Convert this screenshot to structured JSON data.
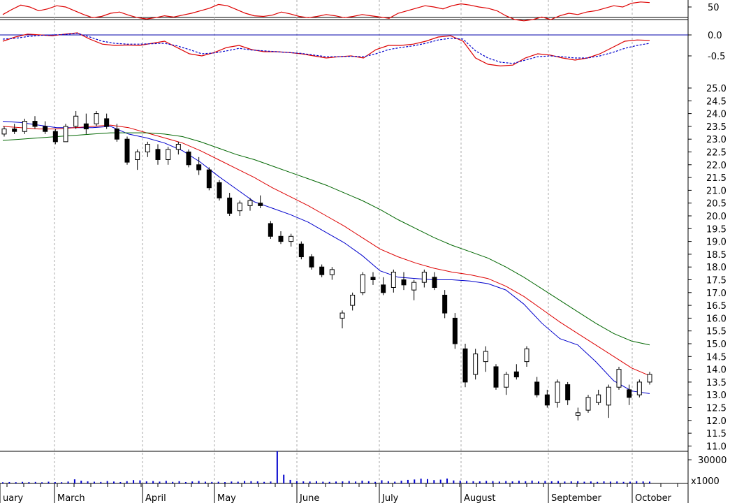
{
  "chart_data": {
    "type": "candlestick",
    "panels": [
      {
        "name": "oscillator",
        "yticks": [
          "50"
        ],
        "reference_level": 30,
        "series": [
          {
            "color": "#dd0000",
            "style": "solid",
            "values": [
              38,
              46,
              53,
              50,
              44,
              47,
              52,
              50,
              44,
              38,
              33,
              35,
              40,
              42,
              37,
              33,
              31,
              33,
              36,
              34,
              37,
              40,
              44,
              48,
              54,
              52,
              46,
              40,
              36,
              35,
              37,
              42,
              39,
              35,
              33,
              35,
              38,
              36,
              33,
              35,
              38,
              36,
              34,
              32,
              40,
              44,
              48,
              52,
              50,
              47,
              52,
              55,
              53,
              50,
              48,
              44,
              36,
              30,
              28,
              30,
              34,
              30,
              36,
              40,
              38,
              42,
              44,
              48,
              52,
              50,
              56,
              58,
              57
            ]
          }
        ]
      },
      {
        "name": "macd",
        "yticks": [
          "0.0",
          "-0.5"
        ],
        "zero_line": 0.0,
        "series": [
          {
            "color": "#dd0000",
            "style": "solid",
            "values": [
              -0.15,
              -0.05,
              0.02,
              0.0,
              -0.02,
              0.02,
              0.05,
              -0.1,
              -0.22,
              -0.25,
              -0.24,
              -0.25,
              -0.2,
              -0.15,
              -0.3,
              -0.45,
              -0.5,
              -0.42,
              -0.3,
              -0.25,
              -0.35,
              -0.4,
              -0.4,
              -0.42,
              -0.45,
              -0.5,
              -0.55,
              -0.52,
              -0.5,
              -0.55,
              -0.35,
              -0.25,
              -0.25,
              -0.22,
              -0.15,
              -0.05,
              -0.02,
              -0.15,
              -0.55,
              -0.7,
              -0.74,
              -0.72,
              -0.55,
              -0.45,
              -0.48,
              -0.55,
              -0.6,
              -0.55,
              -0.45,
              -0.3,
              -0.15,
              -0.12,
              -0.13
            ]
          },
          {
            "color": "#0000cc",
            "style": "dashed",
            "values": [
              -0.1,
              -0.08,
              -0.04,
              -0.01,
              0.0,
              0.01,
              0.04,
              -0.05,
              -0.15,
              -0.2,
              -0.22,
              -0.22,
              -0.21,
              -0.2,
              -0.26,
              -0.35,
              -0.45,
              -0.43,
              -0.38,
              -0.32,
              -0.36,
              -0.38,
              -0.4,
              -0.42,
              -0.44,
              -0.48,
              -0.52,
              -0.52,
              -0.51,
              -0.52,
              -0.45,
              -0.35,
              -0.3,
              -0.26,
              -0.2,
              -0.12,
              -0.08,
              -0.1,
              -0.38,
              -0.55,
              -0.65,
              -0.68,
              -0.6,
              -0.52,
              -0.5,
              -0.52,
              -0.55,
              -0.55,
              -0.5,
              -0.42,
              -0.32,
              -0.25,
              -0.2
            ]
          }
        ]
      },
      {
        "name": "price",
        "yticks": [
          "25.0",
          "24.5",
          "24.0",
          "23.5",
          "23.0",
          "22.5",
          "22.0",
          "21.5",
          "21.0",
          "20.5",
          "20.0",
          "19.5",
          "19.0",
          "18.5",
          "18.0",
          "17.5",
          "17.0",
          "16.5",
          "16.0",
          "15.5",
          "15.0",
          "14.5",
          "14.0",
          "13.5",
          "13.0",
          "12.5",
          "12.0",
          "11.5",
          "11.0"
        ],
        "moving_averages": [
          {
            "color": "#0000cc",
            "values": [
              23.7,
              23.65,
              23.55,
              23.45,
              23.45,
              23.45,
              23.5,
              23.2,
              23.05,
              22.85,
              22.55,
              22.1,
              21.55,
              21.05,
              20.55,
              20.3,
              20.05,
              19.75,
              19.35,
              18.95,
              18.45,
              17.85,
              17.6,
              17.55,
              17.5,
              17.5,
              17.45,
              17.35,
              17.1,
              16.55,
              15.8,
              15.2,
              14.95,
              14.3,
              13.55,
              13.15,
              13.05
            ]
          },
          {
            "color": "#dd0000",
            "values": [
              23.5,
              23.45,
              23.4,
              23.4,
              23.45,
              23.5,
              23.55,
              23.45,
              23.25,
              23.05,
              22.85,
              22.55,
              22.2,
              21.85,
              21.5,
              21.1,
              20.75,
              20.4,
              20.0,
              19.6,
              19.15,
              18.7,
              18.4,
              18.15,
              17.95,
              17.8,
              17.7,
              17.55,
              17.25,
              16.85,
              16.35,
              15.85,
              15.4,
              14.95,
              14.5,
              14.05,
              13.75
            ]
          },
          {
            "color": "#006600",
            "values": [
              22.95,
              23.0,
              23.05,
              23.1,
              23.15,
              23.2,
              23.25,
              23.25,
              23.25,
              23.2,
              23.1,
              22.9,
              22.65,
              22.4,
              22.2,
              21.95,
              21.7,
              21.45,
              21.2,
              20.9,
              20.6,
              20.25,
              19.85,
              19.5,
              19.15,
              18.85,
              18.6,
              18.35,
              18.0,
              17.6,
              17.15,
              16.7,
              16.25,
              15.8,
              15.4,
              15.1,
              14.95
            ]
          }
        ],
        "candles": [
          [
            23.2,
            23.5,
            23.1,
            23.4
          ],
          [
            23.4,
            23.6,
            23.2,
            23.3
          ],
          [
            23.3,
            23.8,
            23.2,
            23.7
          ],
          [
            23.7,
            23.9,
            23.4,
            23.5
          ],
          [
            23.5,
            23.7,
            23.2,
            23.3
          ],
          [
            23.3,
            23.4,
            22.8,
            22.9
          ],
          [
            22.9,
            23.6,
            22.9,
            23.5
          ],
          [
            23.5,
            24.1,
            23.4,
            23.9
          ],
          [
            23.6,
            24.0,
            23.2,
            23.4
          ],
          [
            23.6,
            24.1,
            23.5,
            24.0
          ],
          [
            23.8,
            24.0,
            23.4,
            23.5
          ],
          [
            23.4,
            23.6,
            22.9,
            23.0
          ],
          [
            23.0,
            23.1,
            22.0,
            22.1
          ],
          [
            22.2,
            22.6,
            21.8,
            22.5
          ],
          [
            22.5,
            22.9,
            22.3,
            22.8
          ],
          [
            22.6,
            22.8,
            22.0,
            22.2
          ],
          [
            22.2,
            22.7,
            22.0,
            22.6
          ],
          [
            22.6,
            22.9,
            22.4,
            22.8
          ],
          [
            22.5,
            22.6,
            21.9,
            22.0
          ],
          [
            22.0,
            22.3,
            21.6,
            21.8
          ],
          [
            21.8,
            21.9,
            21.0,
            21.1
          ],
          [
            21.3,
            21.4,
            20.6,
            20.7
          ],
          [
            20.7,
            20.9,
            20.0,
            20.1
          ],
          [
            20.2,
            20.6,
            20.0,
            20.5
          ],
          [
            20.4,
            20.7,
            20.2,
            20.6
          ],
          [
            20.5,
            20.8,
            20.3,
            20.4
          ],
          [
            19.7,
            19.8,
            19.1,
            19.2
          ],
          [
            19.2,
            19.4,
            18.9,
            19.0
          ],
          [
            19.0,
            19.3,
            18.8,
            19.2
          ],
          [
            18.9,
            19.0,
            18.3,
            18.4
          ],
          [
            18.4,
            18.5,
            17.9,
            18.0
          ],
          [
            18.0,
            18.1,
            17.6,
            17.7
          ],
          [
            17.7,
            18.0,
            17.5,
            17.9
          ],
          [
            16.0,
            16.3,
            15.6,
            16.2
          ],
          [
            16.5,
            17.0,
            16.3,
            16.9
          ],
          [
            17.0,
            17.8,
            16.9,
            17.7
          ],
          [
            17.6,
            17.8,
            17.3,
            17.5
          ],
          [
            17.3,
            17.6,
            16.9,
            17.0
          ],
          [
            17.2,
            17.9,
            17.0,
            17.8
          ],
          [
            17.5,
            17.8,
            17.1,
            17.3
          ],
          [
            17.1,
            17.5,
            16.7,
            17.4
          ],
          [
            17.4,
            17.9,
            17.2,
            17.8
          ],
          [
            17.6,
            17.8,
            17.1,
            17.2
          ],
          [
            16.9,
            17.1,
            16.0,
            16.2
          ],
          [
            16.0,
            16.2,
            14.8,
            15.0
          ],
          [
            14.8,
            15.0,
            13.3,
            13.5
          ],
          [
            13.8,
            14.8,
            13.6,
            14.6
          ],
          [
            14.3,
            14.9,
            13.9,
            14.7
          ],
          [
            14.1,
            14.2,
            13.2,
            13.3
          ],
          [
            13.3,
            13.9,
            13.0,
            13.8
          ],
          [
            13.9,
            14.2,
            13.6,
            13.7
          ],
          [
            14.3,
            14.9,
            14.1,
            14.8
          ],
          [
            13.5,
            13.7,
            12.9,
            13.0
          ],
          [
            13.0,
            13.2,
            12.5,
            12.6
          ],
          [
            12.7,
            13.6,
            12.5,
            13.5
          ],
          [
            13.4,
            13.5,
            12.6,
            12.8
          ],
          [
            12.2,
            12.5,
            12.0,
            12.3
          ],
          [
            12.4,
            13.0,
            12.3,
            12.9
          ],
          [
            12.7,
            13.2,
            12.6,
            13.0
          ],
          [
            12.6,
            13.4,
            12.1,
            13.3
          ],
          [
            13.3,
            14.1,
            13.2,
            14.0
          ],
          [
            13.2,
            13.4,
            12.6,
            12.9
          ],
          [
            13.0,
            13.6,
            12.9,
            13.5
          ],
          [
            13.5,
            13.9,
            13.4,
            13.8
          ]
        ]
      },
      {
        "name": "volume",
        "yticks": [
          "30000"
        ],
        "multiplier_label": "x1000",
        "values": [
          1500,
          1800,
          1600,
          2000,
          1700,
          1900,
          1500,
          2200,
          1800,
          1600,
          2400,
          5200,
          3500,
          2600,
          2200,
          1900,
          3000,
          2400,
          1800,
          2800,
          4200,
          3900,
          2600,
          3000,
          2300,
          3300,
          2000,
          2800,
          1800,
          2500,
          3100,
          2200,
          1900,
          2100,
          1700,
          2400,
          2200,
          3100,
          2800,
          2600,
          2000,
          2400,
          41000,
          11000,
          4500,
          3000,
          2600,
          2400,
          2800,
          2200,
          2000,
          2400,
          2600,
          3000,
          2400,
          3500,
          2800,
          2000,
          4000,
          2800,
          2200,
          3500,
          4500,
          5000,
          6000,
          5500,
          4200,
          4800,
          6200,
          3800,
          3500,
          3000,
          2800,
          2600,
          3200,
          2900,
          2400,
          3000,
          2600,
          3400,
          2800,
          3600,
          2500,
          3100,
          2700,
          3000,
          2400,
          2600,
          2800,
          2200,
          2500,
          2000,
          2600,
          2300,
          2500,
          2000,
          2200,
          2800,
          2500,
          2300
        ]
      }
    ],
    "x_month_labels": [
      "uary",
      "March",
      "April",
      "May",
      "June",
      "July",
      "August",
      "September",
      "October"
    ]
  }
}
